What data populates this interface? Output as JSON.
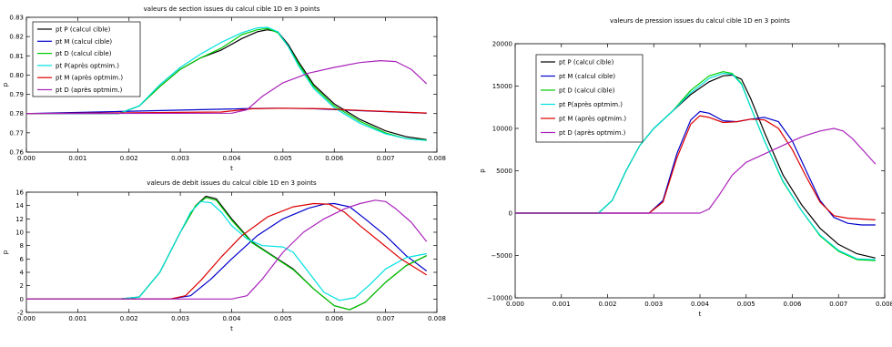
{
  "chart_data": [
    {
      "type": "line",
      "title": "valeurs de section issues du calcul cible 1D en 3 points",
      "xlabel": "t",
      "ylabel": "p",
      "xlim": [
        0.0,
        0.008
      ],
      "ylim": [
        0.76,
        0.83
      ],
      "xticks": [
        "0.000",
        "0.001",
        "0.002",
        "0.003",
        "0.004",
        "0.005",
        "0.006",
        "0.007",
        "0.008"
      ],
      "yticks": [
        "0.76",
        "0.77",
        "0.78",
        "0.79",
        "0.80",
        "0.81",
        "0.82",
        "0.83"
      ],
      "grid": false,
      "legend_position": "top-left",
      "series": [
        {
          "name": "pt P (calcul cible)",
          "color": "#000000",
          "x": [
            0,
            0.0018,
            0.0022,
            0.0026,
            0.003,
            0.0034,
            0.0038,
            0.0042,
            0.0045,
            0.0047,
            0.0049,
            0.0051,
            0.0053,
            0.0056,
            0.006,
            0.0065,
            0.007,
            0.0074,
            0.0078
          ],
          "y": [
            0.78,
            0.78,
            0.784,
            0.794,
            0.803,
            0.809,
            0.813,
            0.819,
            0.8225,
            0.8235,
            0.8225,
            0.816,
            0.807,
            0.795,
            0.785,
            0.777,
            0.771,
            0.768,
            0.7665
          ]
        },
        {
          "name": "pt M (calcul cible)",
          "color": "#0000cc",
          "x": [
            0,
            0.0042,
            0.0048,
            0.0055,
            0.0065,
            0.0078
          ],
          "y": [
            0.78,
            0.7825,
            0.7828,
            0.7826,
            0.7815,
            0.7802
          ]
        },
        {
          "name": "pt D (calcul cible)",
          "color": "#00cc00",
          "x": [
            0,
            0.0018,
            0.0022,
            0.0026,
            0.003,
            0.0034,
            0.0038,
            0.0042,
            0.0045,
            0.0047,
            0.0049,
            0.0051,
            0.0053,
            0.0056,
            0.006,
            0.0065,
            0.007,
            0.0074,
            0.0078
          ],
          "y": [
            0.78,
            0.78,
            0.784,
            0.794,
            0.803,
            0.809,
            0.814,
            0.821,
            0.8235,
            0.8242,
            0.822,
            0.815,
            0.806,
            0.794,
            0.784,
            0.776,
            0.77,
            0.767,
            0.7662
          ]
        },
        {
          "name": "pt P(après optmim.)",
          "color": "#00e0e0",
          "x": [
            0,
            0.0018,
            0.0022,
            0.0026,
            0.003,
            0.0034,
            0.0038,
            0.0042,
            0.0045,
            0.0047,
            0.0049,
            0.0051,
            0.0053,
            0.0056,
            0.006,
            0.0065,
            0.007,
            0.0074,
            0.0078
          ],
          "y": [
            0.78,
            0.78,
            0.784,
            0.795,
            0.804,
            0.811,
            0.817,
            0.822,
            0.8245,
            0.8248,
            0.8225,
            0.815,
            0.805,
            0.793,
            0.783,
            0.775,
            0.7695,
            0.767,
            0.766
          ]
        },
        {
          "name": "pt M (après optmim.)",
          "color": "#dd0000",
          "x": [
            0,
            0.0038,
            0.0044,
            0.005,
            0.0058,
            0.0066,
            0.0078
          ],
          "y": [
            0.78,
            0.7808,
            0.7825,
            0.7828,
            0.7825,
            0.7815,
            0.7803
          ]
        },
        {
          "name": "pt D (après optmim.)",
          "color": "#aa22bb",
          "x": [
            0,
            0.004,
            0.0043,
            0.0046,
            0.005,
            0.0055,
            0.006,
            0.0065,
            0.0069,
            0.0072,
            0.0075,
            0.0078
          ],
          "y": [
            0.78,
            0.7802,
            0.782,
            0.789,
            0.796,
            0.801,
            0.804,
            0.8065,
            0.8075,
            0.807,
            0.803,
            0.7955
          ]
        }
      ]
    },
    {
      "type": "line",
      "title": "valeurs de debit issues du calcul cible 1D en 3 points",
      "xlabel": "t",
      "ylabel": "p",
      "xlim": [
        0.0,
        0.008
      ],
      "ylim": [
        -2,
        16
      ],
      "xticks": [
        "0.000",
        "0.001",
        "0.002",
        "0.003",
        "0.004",
        "0.005",
        "0.006",
        "0.007",
        "0.008"
      ],
      "yticks": [
        "-2",
        "0",
        "2",
        "4",
        "6",
        "8",
        "10",
        "12",
        "14",
        "16"
      ],
      "grid": false,
      "legend_position": "none",
      "series": [
        {
          "name": "pt P (calcul cible)",
          "color": "#000000",
          "x": [
            0,
            0.0018,
            0.0022,
            0.0026,
            0.003,
            0.0033,
            0.0035,
            0.0037,
            0.004,
            0.0044,
            0.0048,
            0.0052,
            0.0056,
            0.006,
            0.0063,
            0.0066,
            0.007,
            0.0074,
            0.0078
          ],
          "y": [
            0,
            0,
            0.3,
            4,
            10,
            14,
            15.4,
            15,
            12,
            8.5,
            6.5,
            4.5,
            1.5,
            -1,
            -1.6,
            -0.5,
            2.5,
            5,
            6.5
          ]
        },
        {
          "name": "pt M (calcul cible)",
          "color": "#0000cc",
          "x": [
            0,
            0.0028,
            0.0032,
            0.0036,
            0.004,
            0.0045,
            0.005,
            0.0055,
            0.0058,
            0.006,
            0.0063,
            0.0066,
            0.007,
            0.0074,
            0.0078
          ],
          "y": [
            0,
            0,
            0.5,
            3,
            6,
            9.5,
            12,
            13.6,
            14.2,
            14.3,
            13.8,
            12,
            9.5,
            6.5,
            4.2
          ]
        },
        {
          "name": "pt D (calcul cible)",
          "color": "#00cc00",
          "x": [
            0,
            0.0018,
            0.0022,
            0.0026,
            0.003,
            0.0033,
            0.0035,
            0.0037,
            0.004,
            0.0044,
            0.0048,
            0.0052,
            0.0056,
            0.006,
            0.0063,
            0.0066,
            0.007,
            0.0074,
            0.0078
          ],
          "y": [
            0,
            0,
            0.3,
            4,
            10,
            14,
            15.2,
            14.8,
            11.8,
            8.4,
            6.4,
            4.4,
            1.5,
            -1,
            -1.6,
            -0.5,
            2.5,
            5,
            6.5
          ]
        },
        {
          "name": "pt P(après optmim.)",
          "color": "#00e0e0",
          "x": [
            0,
            0.0018,
            0.0022,
            0.0026,
            0.003,
            0.0032,
            0.0034,
            0.0036,
            0.0038,
            0.004,
            0.0043,
            0.0046,
            0.005,
            0.0052,
            0.0055,
            0.0058,
            0.0061,
            0.0064,
            0.0067,
            0.007,
            0.0074,
            0.0078
          ],
          "y": [
            0,
            0,
            0.3,
            4,
            10,
            13,
            14.6,
            14.4,
            13,
            11,
            9,
            8,
            7.8,
            7,
            4,
            1,
            -0.2,
            0.2,
            2.2,
            4.5,
            6.2,
            6.8
          ]
        },
        {
          "name": "pt M (après optmim.)",
          "color": "#dd0000",
          "x": [
            0,
            0.0028,
            0.0031,
            0.0034,
            0.0038,
            0.0042,
            0.0047,
            0.0052,
            0.0056,
            0.0059,
            0.0062,
            0.0065,
            0.0069,
            0.0073,
            0.0078
          ],
          "y": [
            0,
            0,
            0.5,
            2.8,
            6.3,
            9.5,
            12.3,
            13.8,
            14.3,
            14.2,
            13,
            11,
            8.5,
            6,
            3.6
          ]
        },
        {
          "name": "pt D (après optmim.)",
          "color": "#aa22bb",
          "x": [
            0,
            0.004,
            0.0043,
            0.0046,
            0.005,
            0.0054,
            0.0058,
            0.0062,
            0.0065,
            0.0068,
            0.007,
            0.0072,
            0.0075,
            0.0078
          ],
          "y": [
            0,
            0,
            0.5,
            3,
            7,
            10,
            12,
            13.5,
            14.3,
            14.8,
            14.6,
            13.5,
            11.5,
            8.6
          ]
        }
      ]
    },
    {
      "type": "line",
      "title": "valeurs de pression issues du calcul cible 1D en 3 points",
      "xlabel": "t",
      "ylabel": "p",
      "xlim": [
        0.0,
        0.008
      ],
      "ylim": [
        -10000,
        20000
      ],
      "xticks": [
        "0.000",
        "0.001",
        "0.002",
        "0.003",
        "0.004",
        "0.005",
        "0.006",
        "0.007",
        "0.008"
      ],
      "yticks": [
        "−10000",
        "−5000",
        "0",
        "5000",
        "10000",
        "15000",
        "20000"
      ],
      "grid": false,
      "legend_position": "top-left",
      "series": [
        {
          "name": "pt P (calcul cible)",
          "color": "#000000",
          "x": [
            0,
            0.0018,
            0.0021,
            0.0024,
            0.0027,
            0.003,
            0.0034,
            0.0038,
            0.0042,
            0.0045,
            0.0047,
            0.0049,
            0.0051,
            0.0054,
            0.0058,
            0.0062,
            0.0066,
            0.007,
            0.0074,
            0.0078
          ],
          "y": [
            0,
            0,
            1500,
            5000,
            8000,
            10000,
            12000,
            14000,
            15500,
            16200,
            16300,
            15800,
            13500,
            9500,
            4500,
            1000,
            -1800,
            -3700,
            -4800,
            -5300
          ]
        },
        {
          "name": "pt M (calcul cible)",
          "color": "#0000cc",
          "x": [
            0,
            0.0029,
            0.0032,
            0.0035,
            0.0038,
            0.004,
            0.0042,
            0.0045,
            0.0048,
            0.0051,
            0.0054,
            0.0057,
            0.006,
            0.0063,
            0.0066,
            0.0069,
            0.0072,
            0.0075,
            0.0078
          ],
          "y": [
            0,
            0,
            1500,
            7000,
            11000,
            12000,
            11800,
            10900,
            10800,
            11100,
            11300,
            10800,
            8500,
            5000,
            1500,
            -500,
            -1200,
            -1400,
            -1400
          ]
        },
        {
          "name": "pt D (calcul cible)",
          "color": "#00cc00",
          "x": [
            0,
            0.0018,
            0.0021,
            0.0024,
            0.0027,
            0.003,
            0.0034,
            0.0038,
            0.0042,
            0.0045,
            0.0047,
            0.0049,
            0.0051,
            0.0054,
            0.0058,
            0.0062,
            0.0066,
            0.007,
            0.0074,
            0.0078
          ],
          "y": [
            0,
            0,
            1500,
            5000,
            8000,
            10000,
            12000,
            14500,
            16200,
            16700,
            16500,
            15300,
            12500,
            8500,
            3700,
            300,
            -2700,
            -4500,
            -5500,
            -5600
          ]
        },
        {
          "name": "pt P(après optmim.)",
          "color": "#00e0e0",
          "x": [
            0,
            0.0018,
            0.0021,
            0.0024,
            0.0027,
            0.003,
            0.0034,
            0.0038,
            0.0042,
            0.0045,
            0.0047,
            0.0049,
            0.0051,
            0.0054,
            0.0058,
            0.0062,
            0.0066,
            0.007,
            0.0074,
            0.0078
          ],
          "y": [
            0,
            0,
            1500,
            5000,
            8000,
            10000,
            12000,
            14200,
            15900,
            16500,
            16400,
            15200,
            12500,
            8500,
            3800,
            300,
            -2600,
            -4400,
            -5400,
            -5500
          ]
        },
        {
          "name": "pt M (après optmim.)",
          "color": "#dd0000",
          "x": [
            0,
            0.0029,
            0.0032,
            0.0035,
            0.0038,
            0.004,
            0.0042,
            0.0045,
            0.0048,
            0.0051,
            0.0054,
            0.0057,
            0.006,
            0.0063,
            0.0066,
            0.0069,
            0.0072,
            0.0075,
            0.0078
          ],
          "y": [
            0,
            0,
            1300,
            6500,
            10500,
            11500,
            11300,
            10700,
            10800,
            11100,
            11000,
            10000,
            7500,
            4300,
            1300,
            -300,
            -600,
            -700,
            -800
          ]
        },
        {
          "name": "pt D (après optmim.)",
          "color": "#aa22bb",
          "x": [
            0,
            0.004,
            0.0042,
            0.0044,
            0.0047,
            0.005,
            0.0054,
            0.0058,
            0.0062,
            0.0066,
            0.0069,
            0.0071,
            0.0073,
            0.0076,
            0.0078
          ],
          "y": [
            0,
            0,
            500,
            2000,
            4500,
            6000,
            7000,
            8000,
            9000,
            9700,
            10000,
            9700,
            8800,
            7000,
            5800
          ]
        }
      ]
    }
  ]
}
